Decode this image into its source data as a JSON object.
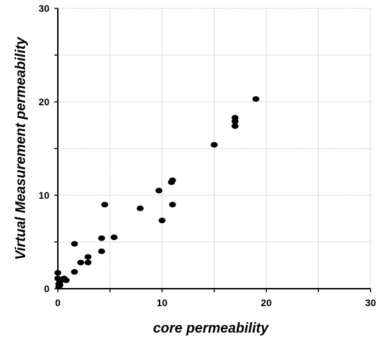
{
  "chart_data": {
    "type": "scatter",
    "title": "",
    "xlabel": "core permeability",
    "ylabel": "Virtual Measurement permeability",
    "xlim": [
      0,
      30
    ],
    "ylim": [
      0,
      30
    ],
    "xticks": [
      0,
      10,
      20,
      30
    ],
    "yticks": [
      0,
      10,
      20,
      30
    ],
    "grid": true,
    "marker_color": "#000000",
    "series": [
      {
        "x": [
          0.0,
          0.0,
          0.1,
          0.1,
          0.2,
          0.2,
          0.3,
          0.6,
          0.8,
          1.6,
          1.6,
          2.2,
          2.9,
          2.9,
          4.2,
          4.2,
          4.5,
          5.4,
          7.9,
          9.7,
          10.0,
          10.9,
          11.0,
          11.0,
          15.0,
          17.0,
          17.0,
          17.0,
          19.0
        ],
        "y": [
          1.7,
          1.1,
          0.5,
          0.2,
          0.4,
          0.8,
          0.9,
          1.1,
          0.9,
          1.8,
          4.8,
          2.8,
          2.8,
          3.4,
          4.0,
          5.4,
          9.0,
          5.5,
          8.6,
          10.5,
          7.3,
          11.4,
          11.6,
          9.0,
          15.4,
          17.4,
          17.9,
          18.3,
          20.3
        ]
      }
    ]
  }
}
